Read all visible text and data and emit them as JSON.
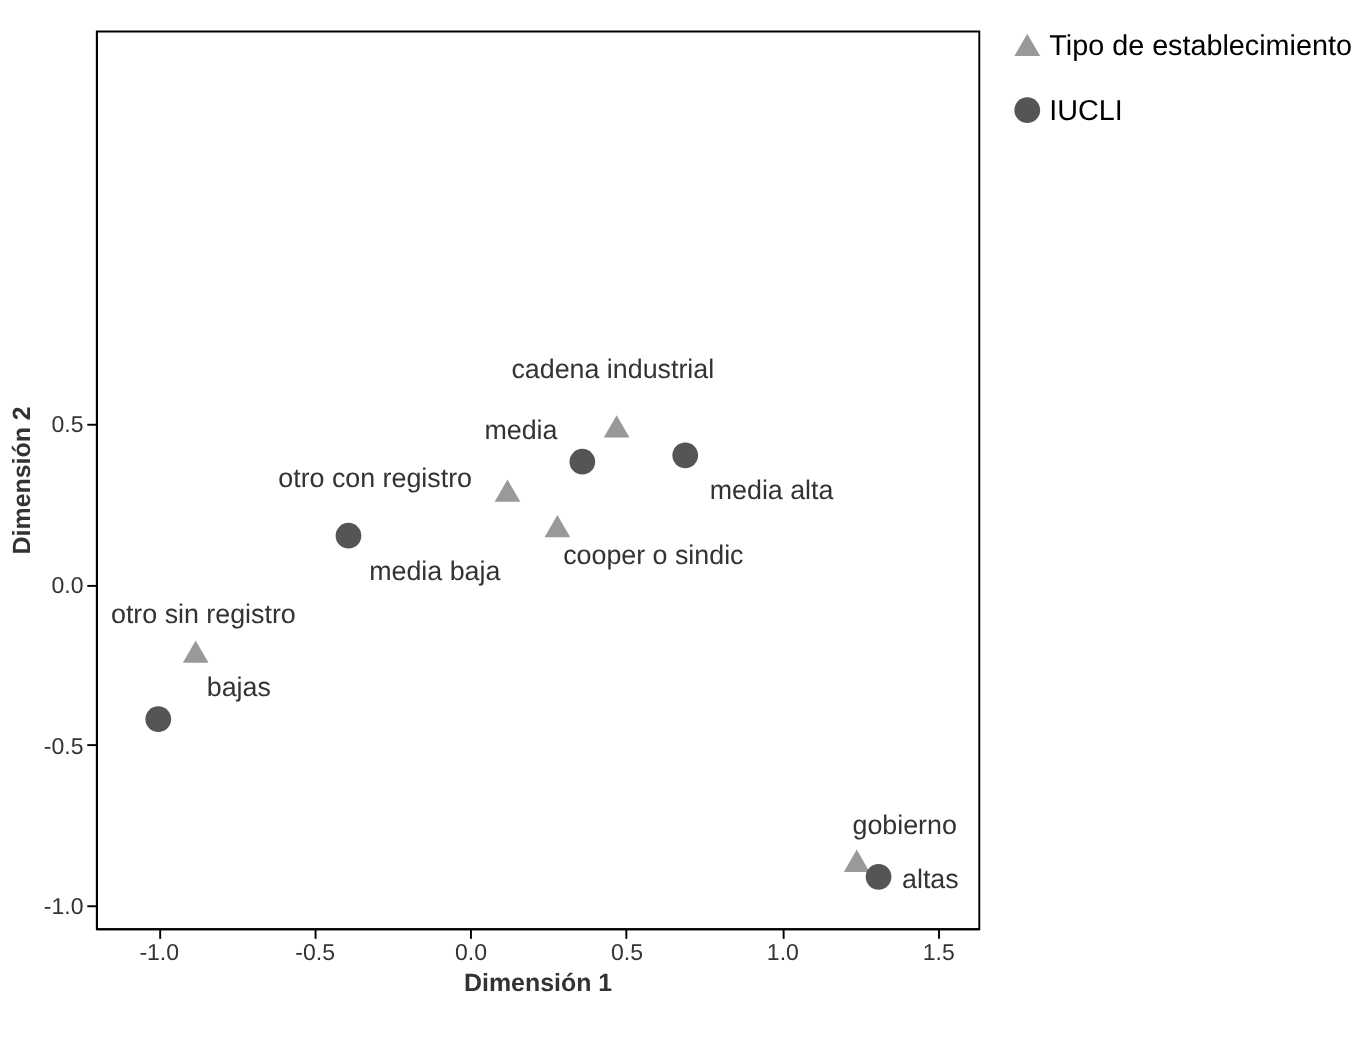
{
  "chart_data": {
    "type": "scatter",
    "xlabel": "Dimensión 1",
    "ylabel": "Dimensión 2",
    "xlim": [
      -1.2,
      1.63
    ],
    "ylim": [
      -1.07,
      1.72
    ],
    "xticks": [
      {
        "value": -1,
        "label": "-1.0"
      },
      {
        "value": -0.5,
        "label": "-0.5"
      },
      {
        "value": 0,
        "label": "0.0"
      },
      {
        "value": 0.5,
        "label": "0.5"
      },
      {
        "value": 1,
        "label": "1.0"
      },
      {
        "value": 1.5,
        "label": "1.5"
      }
    ],
    "yticks": [
      {
        "value": -1,
        "label": "-1.0"
      },
      {
        "value": -0.5,
        "label": "-0.5"
      },
      {
        "value": 0,
        "label": "0.0"
      },
      {
        "value": 0.5,
        "label": "0.5"
      }
    ],
    "grid": false,
    "legend": "right",
    "series": [
      {
        "name": "Tipo de establecimiento",
        "color": "#999999",
        "marker": "triangle",
        "x": [
          0.47,
          0.12,
          0.28,
          -0.88,
          1.24
        ],
        "values": [
          0.49,
          0.29,
          0.18,
          -0.21,
          -0.86
        ]
      },
      {
        "name": "IUCLI",
        "color": "#555555",
        "marker": "circle",
        "x": [
          0.36,
          0.69,
          -0.39,
          -1.0,
          1.31
        ],
        "values": [
          0.38,
          0.4,
          0.15,
          -0.42,
          -0.91
        ]
      }
    ],
    "annotations": [
      {
        "text": "cadena industrial",
        "x": 0.47,
        "y": 0.49
      },
      {
        "text": "otro con registro",
        "x": 0.12,
        "y": 0.29
      },
      {
        "text": "cooper o sindic",
        "x": 0.28,
        "y": 0.18
      },
      {
        "text": "otro sin registro",
        "x": -0.88,
        "y": -0.21
      },
      {
        "text": "gobierno",
        "x": 1.24,
        "y": -0.86
      },
      {
        "text": "media",
        "x": 0.36,
        "y": 0.38
      },
      {
        "text": "media alta",
        "x": 0.69,
        "y": 0.4
      },
      {
        "text": "media baja",
        "x": -0.39,
        "y": 0.15
      },
      {
        "text": "bajas",
        "x": -1.0,
        "y": -0.42
      },
      {
        "text": "altas",
        "x": 1.31,
        "y": -0.91
      }
    ]
  }
}
